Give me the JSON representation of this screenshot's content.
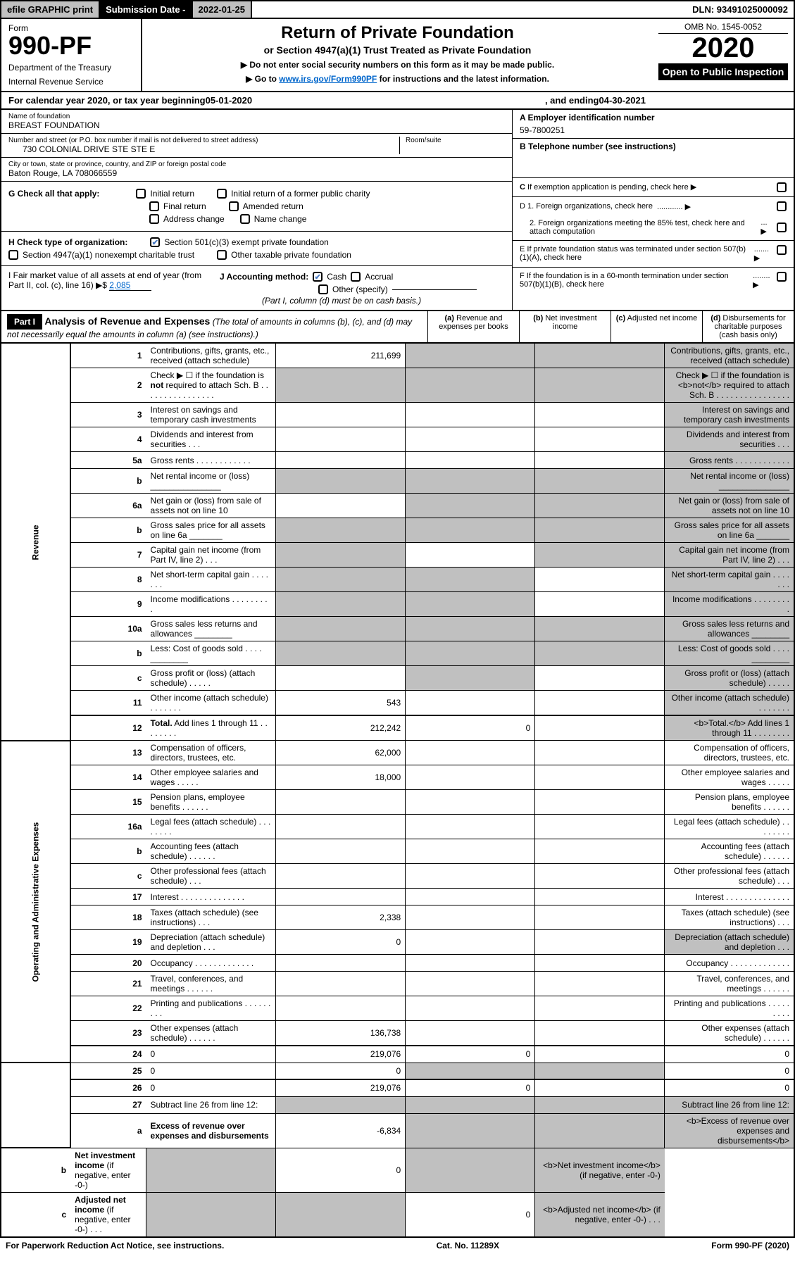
{
  "topbar": {
    "efile": "efile GRAPHIC print",
    "subdate_label": "Submission Date - ",
    "subdate_value": "2022-01-25",
    "dln": "DLN: 93491025000092"
  },
  "header": {
    "form_label": "Form",
    "form_number": "990-PF",
    "dept1": "Department of the Treasury",
    "dept2": "Internal Revenue Service",
    "title": "Return of Private Foundation",
    "subtitle": "or Section 4947(a)(1) Trust Treated as Private Foundation",
    "note1": "▶ Do not enter social security numbers on this form as it may be made public.",
    "note2_pre": "▶ Go to ",
    "note2_link": "www.irs.gov/Form990PF",
    "note2_post": " for instructions and the latest information.",
    "omb": "OMB No. 1545-0052",
    "year": "2020",
    "open": "Open to Public Inspection"
  },
  "calyear": {
    "pre": "For calendar year 2020, or tax year beginning ",
    "begin": "05-01-2020",
    "mid": ", and ending ",
    "end": "04-30-2021"
  },
  "entity": {
    "name_label": "Name of foundation",
    "name": "BREAST FOUNDATION",
    "addr_label": "Number and street (or P.O. box number if mail is not delivered to street address)",
    "addr": "730 COLONIAL DRIVE STE STE E",
    "room_label": "Room/suite",
    "city_label": "City or town, state or province, country, and ZIP or foreign postal code",
    "city": "Baton Rouge, LA  708066559",
    "a_label": "A Employer identification number",
    "ein": "59-7800251",
    "b_label": "B Telephone number (see instructions)",
    "c_label": "C If exemption application is pending, check here",
    "d1_label": "D 1. Foreign organizations, check here",
    "d2_label": "2. Foreign organizations meeting the 85% test, check here and attach computation",
    "e_label": "E  If private foundation status was terminated under section 507(b)(1)(A), check here",
    "f_label": "F  If the foundation is in a 60-month termination under section 507(b)(1)(B), check here"
  },
  "g": {
    "label": "G Check all that apply:",
    "opts": [
      "Initial return",
      "Initial return of a former public charity",
      "Final return",
      "Amended return",
      "Address change",
      "Name change"
    ]
  },
  "h": {
    "label": "H Check type of organization:",
    "opt1": "Section 501(c)(3) exempt private foundation",
    "opt2": "Section 4947(a)(1) nonexempt charitable trust",
    "opt3": "Other taxable private foundation"
  },
  "i": {
    "label": "I Fair market value of all assets at end of year (from Part II, col. (c), line 16) ▶$",
    "value": "2,085"
  },
  "j": {
    "label": "J Accounting method:",
    "cash": "Cash",
    "accrual": "Accrual",
    "other": "Other (specify)",
    "note": "(Part I, column (d) must be on cash basis.)"
  },
  "part1": {
    "label": "Part I",
    "title": "Analysis of Revenue and Expenses",
    "subtitle": "(The total of amounts in columns (b), (c), and (d) may not necessarily equal the amounts in column (a) (see instructions).)",
    "col_a": "(a) Revenue and expenses per books",
    "col_b": "(b) Net investment income",
    "col_c": "(c) Adjusted net income",
    "col_d": "(d) Disbursements for charitable purposes (cash basis only)"
  },
  "sections": {
    "revenue": "Revenue",
    "expenses": "Operating and Administrative Expenses"
  },
  "lines": [
    {
      "n": "1",
      "d": "Contributions, gifts, grants, etc., received (attach schedule)",
      "a": "211,699",
      "grey": [
        "b",
        "c",
        "d"
      ]
    },
    {
      "n": "2",
      "d": "Check ▶ ☐ if the foundation is <b>not</b> required to attach Sch. B   .   .   .   .   .   .   .   .   .   .   .   .   .   .   .   .",
      "grey": [
        "a",
        "b",
        "c",
        "d"
      ]
    },
    {
      "n": "3",
      "d": "Interest on savings and temporary cash investments",
      "grey": [
        "d"
      ]
    },
    {
      "n": "4",
      "d": "Dividends and interest from securities   .   .   .",
      "grey": [
        "d"
      ]
    },
    {
      "n": "5a",
      "d": "Gross rents   .   .   .   .   .   .   .   .   .   .   .   .",
      "grey": [
        "d"
      ]
    },
    {
      "n": "b",
      "d": "Net rental income or (loss) _______________",
      "grey": [
        "a",
        "b",
        "c",
        "d"
      ]
    },
    {
      "n": "6a",
      "d": "Net gain or (loss) from sale of assets not on line 10",
      "grey": [
        "b",
        "c",
        "d"
      ]
    },
    {
      "n": "b",
      "d": "Gross sales price for all assets on line 6a _______",
      "grey": [
        "a",
        "b",
        "c",
        "d"
      ]
    },
    {
      "n": "7",
      "d": "Capital gain net income (from Part IV, line 2)   .   .   .",
      "grey": [
        "a",
        "c",
        "d"
      ]
    },
    {
      "n": "8",
      "d": "Net short-term capital gain   .   .   .   .   .   .   .",
      "grey": [
        "a",
        "b",
        "d"
      ]
    },
    {
      "n": "9",
      "d": "Income modifications   .   .   .   .   .   .   .   .   .",
      "grey": [
        "a",
        "b",
        "d"
      ]
    },
    {
      "n": "10a",
      "d": "Gross sales less returns and allowances ________",
      "grey": [
        "a",
        "b",
        "c",
        "d"
      ]
    },
    {
      "n": "b",
      "d": "Less: Cost of goods sold   .   .   .   . ________",
      "grey": [
        "a",
        "b",
        "c",
        "d"
      ]
    },
    {
      "n": "c",
      "d": "Gross profit or (loss) (attach schedule)   .   .   .   .   .",
      "grey": [
        "b",
        "d"
      ]
    },
    {
      "n": "11",
      "d": "Other income (attach schedule)   .   .   .   .   .   .   .",
      "a": "543",
      "grey": [
        "d"
      ]
    },
    {
      "n": "12",
      "d": "<b>Total.</b> Add lines 1 through 11   .   .   .   .   .   .   .   .",
      "a": "212,242",
      "b": "0",
      "bold": true,
      "grey": [
        "d"
      ]
    },
    {
      "n": "13",
      "d": "Compensation of officers, directors, trustees, etc.",
      "a": "62,000"
    },
    {
      "n": "14",
      "d": "Other employee salaries and wages   .   .   .   .   .",
      "a": "18,000"
    },
    {
      "n": "15",
      "d": "Pension plans, employee benefits   .   .   .   .   .   ."
    },
    {
      "n": "16a",
      "d": "Legal fees (attach schedule)   .   .   .   .   .   .   .   ."
    },
    {
      "n": "b",
      "d": "Accounting fees (attach schedule)   .   .   .   .   .   ."
    },
    {
      "n": "c",
      "d": "Other professional fees (attach schedule)   .   .   ."
    },
    {
      "n": "17",
      "d": "Interest   .   .   .   .   .   .   .   .   .   .   .   .   .   ."
    },
    {
      "n": "18",
      "d": "Taxes (attach schedule) (see instructions)   .   .   .",
      "a": "2,338"
    },
    {
      "n": "19",
      "d": "Depreciation (attach schedule) and depletion   .   .   .",
      "a": "0",
      "grey": [
        "d"
      ]
    },
    {
      "n": "20",
      "d": "Occupancy   .   .   .   .   .   .   .   .   .   .   .   .   ."
    },
    {
      "n": "21",
      "d": "Travel, conferences, and meetings   .   .   .   .   .   ."
    },
    {
      "n": "22",
      "d": "Printing and publications   .   .   .   .   .   .   .   .   ."
    },
    {
      "n": "23",
      "d": "Other expenses (attach schedule)   .   .   .   .   .   .",
      "a": "136,738"
    },
    {
      "n": "24",
      "d": "0",
      "a": "219,076",
      "b": "0",
      "bold": true
    },
    {
      "n": "25",
      "d": "0",
      "a": "0",
      "grey": [
        "b",
        "c"
      ]
    },
    {
      "n": "26",
      "d": "0",
      "a": "219,076",
      "b": "0",
      "bold": true
    },
    {
      "n": "27",
      "d": "Subtract line 26 from line 12:",
      "grey": [
        "a",
        "b",
        "c",
        "d"
      ]
    },
    {
      "n": "a",
      "d": "<b>Excess of revenue over expenses and disbursements</b>",
      "a": "-6,834",
      "grey": [
        "b",
        "c",
        "d"
      ]
    },
    {
      "n": "b",
      "d": "<b>Net investment income</b> (if negative, enter -0-)",
      "b": "0",
      "grey": [
        "a",
        "c",
        "d"
      ]
    },
    {
      "n": "c",
      "d": "<b>Adjusted net income</b> (if negative, enter -0-)   .   .   .",
      "c": "0",
      "grey": [
        "a",
        "b",
        "d"
      ]
    }
  ],
  "footer": {
    "left": "For Paperwork Reduction Act Notice, see instructions.",
    "mid": "Cat. No. 11289X",
    "right": "Form 990-PF (2020)"
  }
}
